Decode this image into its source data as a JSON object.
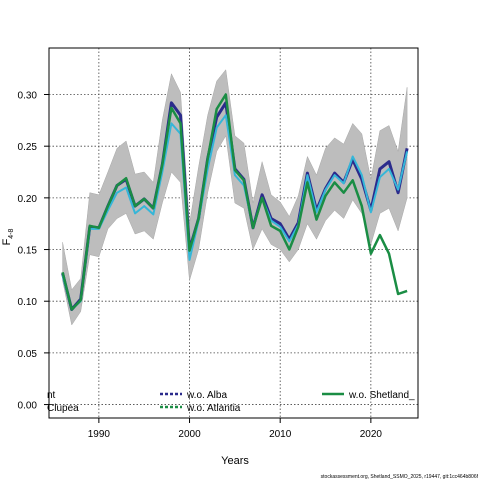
{
  "chart_data": {
    "type": "line",
    "title": "",
    "xlabel": "Years",
    "ylabel": "F",
    "ylabel_sub": "4-8",
    "xlim": [
      1984.5,
      2025.2
    ],
    "ylim": [
      -0.013,
      0.345
    ],
    "xticks": [
      1990,
      2000,
      2010,
      2020
    ],
    "yticks": [
      0.0,
      0.05,
      0.1,
      0.15,
      0.2,
      0.25,
      0.3
    ],
    "ytick_labels": [
      "0.00",
      "0.05",
      "0.10",
      "0.15",
      "0.20",
      "0.25",
      "0.30"
    ],
    "grid": true,
    "footer": "stockassessment.org, Shetland_SSMO_2025, r19447, git:1cc464b806f",
    "legend": {
      "placement": "bottom",
      "entries": [
        {
          "label": "nt",
          "color": "#1a8d44",
          "style": "solid"
        },
        {
          "label": "Clupea",
          "color": "#1a8d44",
          "style": "solid"
        },
        {
          "label": "w.o. Alba",
          "color": "#2b2b8c",
          "style": "dashed"
        },
        {
          "label": "w.o. Atlantia",
          "color": "#1a8d44",
          "style": "dashed"
        },
        {
          "label": "w.o. Shetland_",
          "color": "#1a8d44",
          "style": "solid"
        }
      ]
    },
    "band": {
      "name": "confidence interval",
      "x": [
        1986,
        1987,
        1988,
        1989,
        1990,
        1991,
        1992,
        1993,
        1994,
        1995,
        1996,
        1997,
        1998,
        1999,
        2000,
        2001,
        2002,
        2003,
        2004,
        2005,
        2006,
        2007,
        2008,
        2009,
        2010,
        2011,
        2012,
        2013,
        2014,
        2015,
        2016,
        2017,
        2018,
        2019,
        2020,
        2021,
        2022,
        2023,
        2024
      ],
      "upper": [
        0.157,
        0.111,
        0.122,
        0.205,
        0.203,
        0.225,
        0.248,
        0.255,
        0.223,
        0.225,
        0.215,
        0.275,
        0.32,
        0.302,
        0.175,
        0.23,
        0.28,
        0.313,
        0.324,
        0.26,
        0.253,
        0.195,
        0.235,
        0.203,
        0.196,
        0.182,
        0.202,
        0.24,
        0.222,
        0.248,
        0.258,
        0.252,
        0.272,
        0.262,
        0.218,
        0.265,
        0.27,
        0.245,
        0.307
      ],
      "lower": [
        0.12,
        0.077,
        0.09,
        0.145,
        0.143,
        0.17,
        0.18,
        0.185,
        0.165,
        0.168,
        0.16,
        0.195,
        0.225,
        0.215,
        0.12,
        0.15,
        0.205,
        0.245,
        0.26,
        0.195,
        0.19,
        0.15,
        0.17,
        0.155,
        0.15,
        0.138,
        0.15,
        0.175,
        0.16,
        0.178,
        0.188,
        0.18,
        0.198,
        0.185,
        0.155,
        0.185,
        0.19,
        0.168,
        0.2
      ]
    },
    "series": [
      {
        "name": "w.o. Alba",
        "color": "#2b2b8c",
        "x": [
          1986,
          1987,
          1988,
          1989,
          1990,
          1991,
          1992,
          1993,
          1994,
          1995,
          1996,
          1997,
          1998,
          1999,
          2000,
          2001,
          2002,
          2003,
          2004,
          2005,
          2006,
          2007,
          2008,
          2009,
          2010,
          2011,
          2012,
          2013,
          2014,
          2015,
          2016,
          2017,
          2018,
          2019,
          2020,
          2021,
          2022,
          2023,
          2024
        ],
        "values": [
          0.127,
          0.092,
          0.102,
          0.172,
          0.171,
          0.192,
          0.212,
          0.218,
          0.192,
          0.199,
          0.19,
          0.232,
          0.292,
          0.28,
          0.15,
          0.18,
          0.238,
          0.278,
          0.292,
          0.228,
          0.218,
          0.171,
          0.203,
          0.18,
          0.175,
          0.16,
          0.176,
          0.224,
          0.188,
          0.209,
          0.224,
          0.215,
          0.237,
          0.218,
          0.188,
          0.228,
          0.235,
          0.205,
          0.248
        ]
      },
      {
        "name": "w.o. Atlantia",
        "color": "#35b6d8",
        "x": [
          1986,
          1987,
          1988,
          1989,
          1990,
          1991,
          1992,
          1993,
          1994,
          1995,
          1996,
          1997,
          1998,
          1999,
          2000,
          2001,
          2002,
          2003,
          2004,
          2005,
          2006,
          2007,
          2008,
          2009,
          2010,
          2011,
          2012,
          2013,
          2014,
          2015,
          2016,
          2017,
          2018,
          2019,
          2020,
          2021,
          2022,
          2023,
          2024
        ],
        "values": [
          0.125,
          0.092,
          0.1,
          0.17,
          0.17,
          0.188,
          0.205,
          0.21,
          0.185,
          0.192,
          0.184,
          0.225,
          0.272,
          0.262,
          0.14,
          0.178,
          0.228,
          0.268,
          0.28,
          0.222,
          0.212,
          0.172,
          0.2,
          0.178,
          0.172,
          0.158,
          0.174,
          0.222,
          0.186,
          0.208,
          0.222,
          0.214,
          0.24,
          0.222,
          0.186,
          0.22,
          0.228,
          0.208,
          0.245
        ]
      },
      {
        "name": "w.o. Shetland_",
        "color": "#1a8d44",
        "x": [
          1986,
          1987,
          1988,
          1989,
          1990,
          1991,
          1992,
          1993,
          1994,
          1995,
          1996,
          1997,
          1998,
          1999,
          2000,
          2001,
          2002,
          2003,
          2004,
          2005,
          2006,
          2007,
          2008,
          2009,
          2010,
          2011,
          2012,
          2013,
          2014,
          2015,
          2016,
          2017,
          2018,
          2019,
          2020,
          2021,
          2022,
          2023,
          2024
        ],
        "values": [
          0.128,
          0.092,
          0.101,
          0.173,
          0.171,
          0.192,
          0.212,
          0.219,
          0.192,
          0.199,
          0.19,
          0.232,
          0.287,
          0.272,
          0.149,
          0.18,
          0.238,
          0.286,
          0.3,
          0.227,
          0.217,
          0.171,
          0.2,
          0.173,
          0.168,
          0.15,
          0.172,
          0.215,
          0.179,
          0.202,
          0.215,
          0.205,
          0.217,
          0.192,
          0.146,
          0.164,
          0.146,
          0.107,
          0.11
        ]
      }
    ]
  }
}
